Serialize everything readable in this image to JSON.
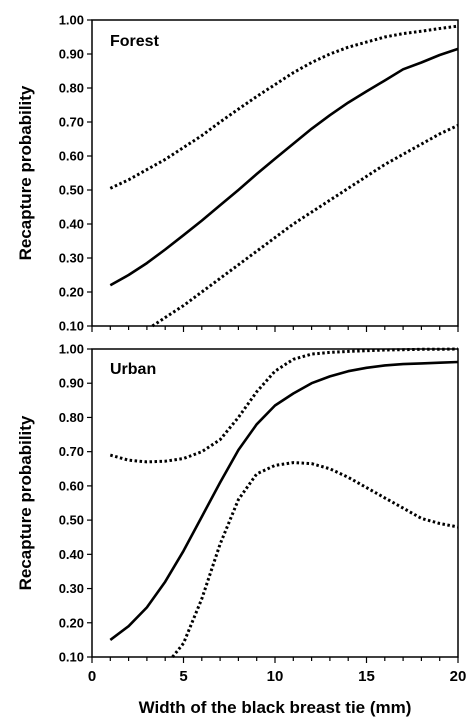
{
  "chart_data": [
    {
      "type": "line",
      "panel_label": "Forest",
      "ylabel": "Recapture probability",
      "ylim": [
        0.1,
        1.0
      ],
      "xlim": [
        0,
        20
      ],
      "y_ticks": [
        "0.10",
        "0.20",
        "0.30",
        "0.40",
        "0.50",
        "0.60",
        "0.70",
        "0.80",
        "0.90",
        "1.00"
      ],
      "series": [
        {
          "style": "solid",
          "x": [
            1,
            2,
            3,
            4,
            5,
            6,
            7,
            8,
            9,
            10,
            11,
            12,
            13,
            14,
            15,
            16,
            17,
            18,
            19,
            20
          ],
          "y": [
            0.22,
            0.25,
            0.285,
            0.325,
            0.367,
            0.41,
            0.455,
            0.5,
            0.547,
            0.592,
            0.636,
            0.68,
            0.72,
            0.757,
            0.79,
            0.822,
            0.855,
            0.875,
            0.897,
            0.915
          ]
        },
        {
          "style": "dotted",
          "x": [
            1,
            2,
            3,
            4,
            5,
            6,
            7,
            8,
            9,
            10,
            11,
            12,
            13,
            14,
            15,
            16,
            17,
            18,
            19,
            20
          ],
          "y": [
            0.505,
            0.53,
            0.56,
            0.59,
            0.625,
            0.66,
            0.7,
            0.738,
            0.775,
            0.81,
            0.845,
            0.875,
            0.9,
            0.92,
            0.935,
            0.95,
            0.96,
            0.967,
            0.975,
            0.982
          ]
        },
        {
          "style": "dotted",
          "x": [
            3.3,
            4,
            5,
            6,
            7,
            8,
            9,
            10,
            11,
            12,
            13,
            14,
            15,
            16,
            17,
            18,
            19,
            20
          ],
          "y": [
            0.1,
            0.125,
            0.16,
            0.2,
            0.24,
            0.28,
            0.32,
            0.36,
            0.4,
            0.435,
            0.47,
            0.505,
            0.54,
            0.575,
            0.605,
            0.635,
            0.665,
            0.69
          ]
        }
      ]
    },
    {
      "type": "line",
      "panel_label": "Urban",
      "ylabel": "Recapture probability",
      "xlabel": "Width of the black breast tie (mm)",
      "ylim": [
        0.1,
        1.0
      ],
      "xlim": [
        0,
        20
      ],
      "y_ticks": [
        "0.10",
        "0.20",
        "0.30",
        "0.40",
        "0.50",
        "0.60",
        "0.70",
        "0.80",
        "0.90",
        "1.00"
      ],
      "x_ticks": [
        "0",
        "5",
        "10",
        "15",
        "20"
      ],
      "series": [
        {
          "style": "solid",
          "x": [
            1,
            2,
            3,
            4,
            5,
            6,
            7,
            8,
            9,
            10,
            11,
            12,
            13,
            14,
            15,
            16,
            17,
            18,
            19,
            20
          ],
          "y": [
            0.15,
            0.19,
            0.245,
            0.32,
            0.41,
            0.51,
            0.61,
            0.705,
            0.78,
            0.835,
            0.87,
            0.9,
            0.92,
            0.935,
            0.945,
            0.952,
            0.956,
            0.958,
            0.96,
            0.962
          ]
        },
        {
          "style": "dotted",
          "x": [
            1,
            2,
            3,
            4,
            5,
            6,
            7,
            8,
            9,
            10,
            11,
            12,
            13,
            14,
            15,
            16,
            17,
            18,
            19,
            20
          ],
          "y": [
            0.69,
            0.675,
            0.67,
            0.672,
            0.68,
            0.7,
            0.735,
            0.8,
            0.875,
            0.935,
            0.97,
            0.985,
            0.99,
            0.993,
            0.995,
            0.997,
            0.998,
            0.999,
            0.999,
            1.0
          ]
        },
        {
          "style": "dotted",
          "x": [
            4.4,
            5,
            6,
            7,
            8,
            9,
            10,
            11,
            12,
            13,
            14,
            15,
            16,
            17,
            18,
            19,
            20
          ],
          "y": [
            0.1,
            0.14,
            0.27,
            0.43,
            0.56,
            0.635,
            0.66,
            0.668,
            0.665,
            0.65,
            0.625,
            0.595,
            0.565,
            0.535,
            0.505,
            0.49,
            0.48
          ]
        }
      ]
    }
  ]
}
